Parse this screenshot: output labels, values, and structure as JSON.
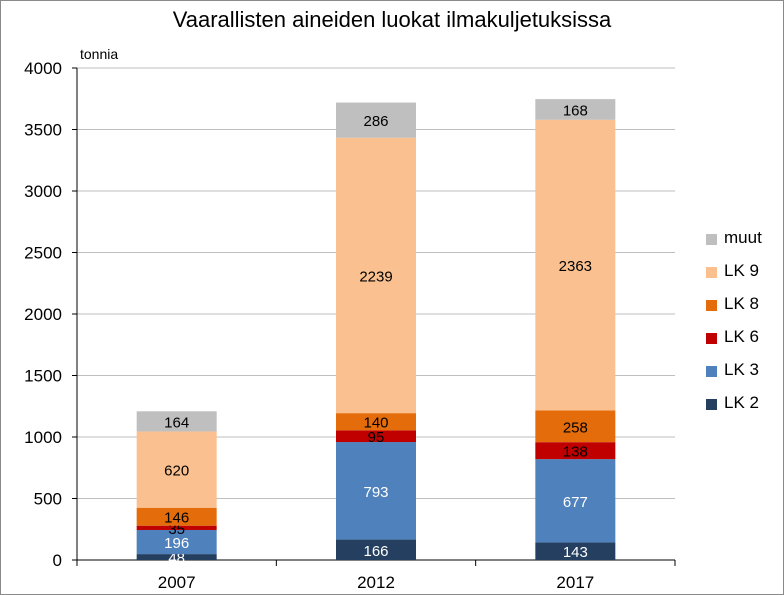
{
  "chart_data": {
    "type": "bar",
    "stacked": true,
    "title": "Vaarallisten aineiden luokat ilmakuljetuksissa",
    "ylabel": "tonnia",
    "xlabel": "",
    "ylim": [
      0,
      4000
    ],
    "yticks": [
      0,
      500,
      1000,
      1500,
      2000,
      2500,
      3000,
      3500,
      4000
    ],
    "grid": true,
    "legend_position": "right",
    "categories": [
      "2007",
      "2012",
      "2017"
    ],
    "series": [
      {
        "name": "LK 2",
        "color": "#243F60",
        "label_color": "#ffffff",
        "values": [
          48,
          166,
          143
        ]
      },
      {
        "name": "LK 3",
        "color": "#4F81BD",
        "label_color": "#ffffff",
        "values": [
          196,
          793,
          677
        ]
      },
      {
        "name": "LK 6",
        "color": "#C00000",
        "label_color": "#000000",
        "values": [
          35,
          95,
          138
        ]
      },
      {
        "name": "LK 8",
        "color": "#E46C0A",
        "label_color": "#000000",
        "values": [
          146,
          140,
          258
        ]
      },
      {
        "name": "LK 9",
        "color": "#FAC090",
        "label_color": "#000000",
        "values": [
          620,
          2239,
          2363
        ]
      },
      {
        "name": "muut",
        "color": "#BFBFBF",
        "label_color": "#000000",
        "values": [
          164,
          286,
          168
        ]
      }
    ]
  }
}
